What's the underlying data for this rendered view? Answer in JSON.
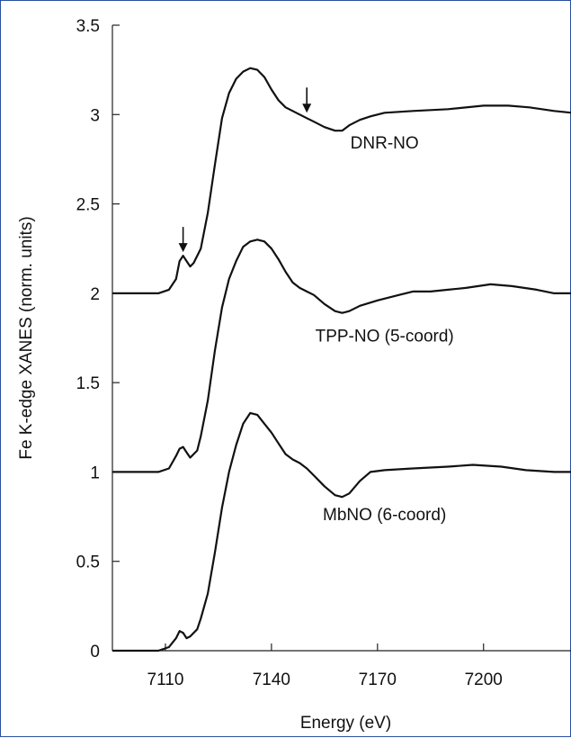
{
  "chart_data": {
    "type": "line",
    "title": "",
    "xlabel": "Energy (eV)",
    "ylabel": "Fe K-edge XANES (norm. units)",
    "xlim": [
      7095,
      7225
    ],
    "ylim": [
      0,
      3.5
    ],
    "x_ticks": [
      7110,
      7140,
      7170,
      7200
    ],
    "y_ticks": [
      0,
      0.5,
      1,
      1.5,
      2,
      2.5,
      3,
      3.5
    ],
    "y_tick_labels": [
      "0",
      "0.5",
      "1",
      "1.5",
      "2",
      "2.5",
      "3",
      "3.5"
    ],
    "grid": false,
    "series": [
      {
        "name": "MbNO (6-coord)",
        "label_at": [
          7172,
          0.73
        ],
        "points": [
          [
            7095,
            0
          ],
          [
            7108,
            0.0
          ],
          [
            7111,
            0.02
          ],
          [
            7113,
            0.07
          ],
          [
            7114,
            0.11
          ],
          [
            7115,
            0.1
          ],
          [
            7116,
            0.07
          ],
          [
            7117,
            0.08
          ],
          [
            7119,
            0.12
          ],
          [
            7120,
            0.18
          ],
          [
            7122,
            0.32
          ],
          [
            7124,
            0.55
          ],
          [
            7126,
            0.8
          ],
          [
            7128,
            1.0
          ],
          [
            7130,
            1.15
          ],
          [
            7132,
            1.27
          ],
          [
            7134,
            1.33
          ],
          [
            7136,
            1.32
          ],
          [
            7138,
            1.27
          ],
          [
            7140,
            1.22
          ],
          [
            7142,
            1.16
          ],
          [
            7144,
            1.1
          ],
          [
            7146,
            1.07
          ],
          [
            7148,
            1.05
          ],
          [
            7150,
            1.02
          ],
          [
            7152,
            0.98
          ],
          [
            7155,
            0.92
          ],
          [
            7158,
            0.87
          ],
          [
            7160,
            0.86
          ],
          [
            7162,
            0.88
          ],
          [
            7165,
            0.95
          ],
          [
            7168,
            1.0
          ],
          [
            7172,
            1.01
          ],
          [
            7180,
            1.02
          ],
          [
            7190,
            1.03
          ],
          [
            7197,
            1.04
          ],
          [
            7205,
            1.03
          ],
          [
            7212,
            1.01
          ],
          [
            7220,
            1.0
          ],
          [
            7225,
            1.0
          ]
        ]
      },
      {
        "name": "TPP-NO (5-coord)",
        "label_at": [
          7172,
          1.73
        ],
        "points": [
          [
            7095,
            1.0
          ],
          [
            7108,
            1.0
          ],
          [
            7111,
            1.02
          ],
          [
            7113,
            1.09
          ],
          [
            7114,
            1.13
          ],
          [
            7115,
            1.14
          ],
          [
            7116,
            1.11
          ],
          [
            7117,
            1.08
          ],
          [
            7119,
            1.12
          ],
          [
            7120,
            1.2
          ],
          [
            7122,
            1.4
          ],
          [
            7124,
            1.68
          ],
          [
            7126,
            1.92
          ],
          [
            7128,
            2.08
          ],
          [
            7130,
            2.18
          ],
          [
            7132,
            2.26
          ],
          [
            7134,
            2.29
          ],
          [
            7136,
            2.3
          ],
          [
            7138,
            2.29
          ],
          [
            7140,
            2.25
          ],
          [
            7142,
            2.19
          ],
          [
            7144,
            2.12
          ],
          [
            7146,
            2.06
          ],
          [
            7148,
            2.03
          ],
          [
            7150,
            2.01
          ],
          [
            7152,
            1.99
          ],
          [
            7155,
            1.94
          ],
          [
            7158,
            1.9
          ],
          [
            7160,
            1.89
          ],
          [
            7162,
            1.9
          ],
          [
            7165,
            1.93
          ],
          [
            7170,
            1.96
          ],
          [
            7176,
            1.99
          ],
          [
            7180,
            2.01
          ],
          [
            7185,
            2.01
          ],
          [
            7190,
            2.02
          ],
          [
            7195,
            2.03
          ],
          [
            7202,
            2.05
          ],
          [
            7208,
            2.04
          ],
          [
            7215,
            2.02
          ],
          [
            7220,
            2.0
          ],
          [
            7225,
            2.0
          ]
        ]
      },
      {
        "name": "DNR-NO",
        "label_at": [
          7172,
          2.81
        ],
        "points": [
          [
            7095,
            2.0
          ],
          [
            7108,
            2.0
          ],
          [
            7111,
            2.02
          ],
          [
            7113,
            2.08
          ],
          [
            7114,
            2.18
          ],
          [
            7115,
            2.21
          ],
          [
            7116,
            2.18
          ],
          [
            7117,
            2.15
          ],
          [
            7118,
            2.17
          ],
          [
            7120,
            2.25
          ],
          [
            7122,
            2.45
          ],
          [
            7124,
            2.72
          ],
          [
            7126,
            2.98
          ],
          [
            7128,
            3.12
          ],
          [
            7130,
            3.2
          ],
          [
            7132,
            3.24
          ],
          [
            7134,
            3.26
          ],
          [
            7136,
            3.25
          ],
          [
            7138,
            3.21
          ],
          [
            7140,
            3.14
          ],
          [
            7142,
            3.08
          ],
          [
            7144,
            3.04
          ],
          [
            7146,
            3.02
          ],
          [
            7148,
            3.0
          ],
          [
            7150,
            2.98
          ],
          [
            7152,
            2.96
          ],
          [
            7155,
            2.93
          ],
          [
            7158,
            2.91
          ],
          [
            7160,
            2.91
          ],
          [
            7162,
            2.94
          ],
          [
            7165,
            2.97
          ],
          [
            7168,
            2.99
          ],
          [
            7172,
            3.01
          ],
          [
            7180,
            3.02
          ],
          [
            7190,
            3.03
          ],
          [
            7200,
            3.05
          ],
          [
            7207,
            3.05
          ],
          [
            7213,
            3.04
          ],
          [
            7220,
            3.02
          ],
          [
            7225,
            3.01
          ]
        ]
      }
    ],
    "arrows": [
      {
        "target": "DNR-NO pre-edge peak",
        "x": 7115,
        "y": 2.21
      },
      {
        "target": "DNR-NO shoulder",
        "x": 7150,
        "y": 2.99
      }
    ]
  }
}
